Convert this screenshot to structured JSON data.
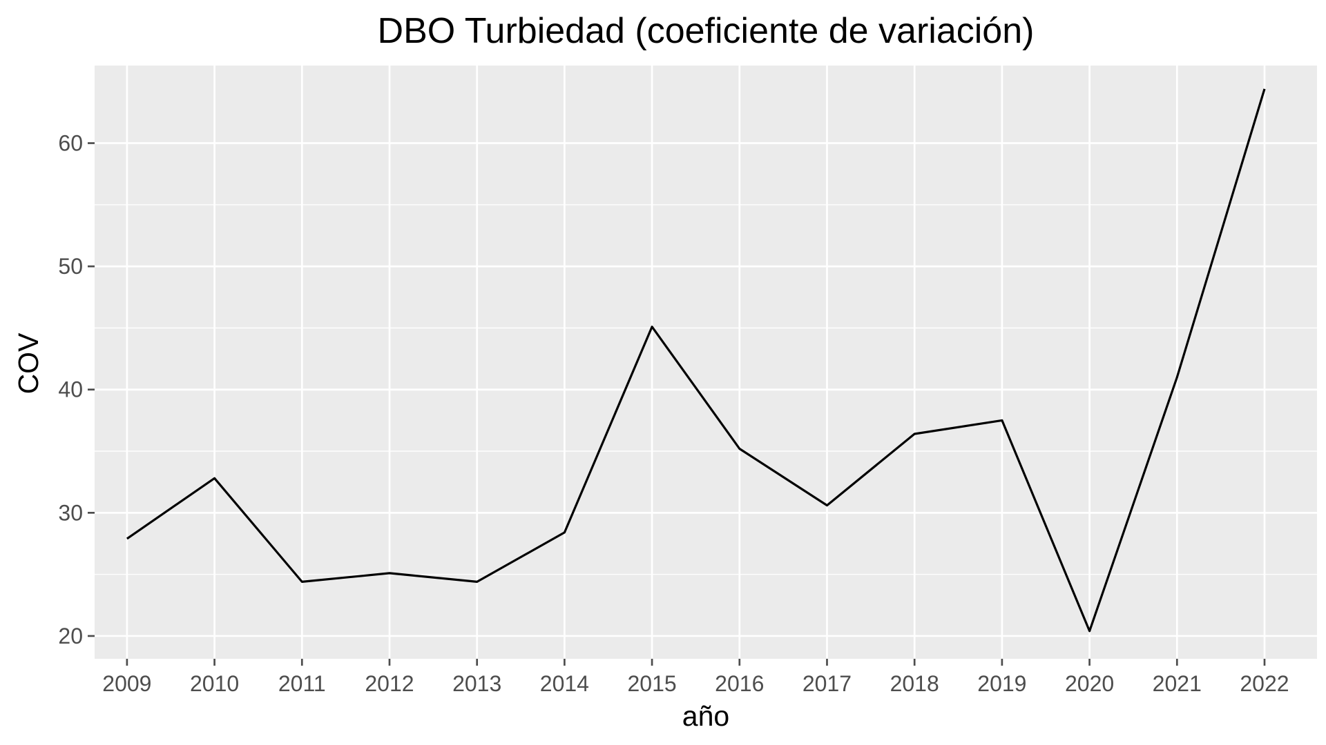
{
  "chart_data": {
    "type": "line",
    "title": "DBO Turbiedad (coeficiente de variación)",
    "xlabel": "año",
    "ylabel": "COV",
    "x": [
      2009,
      2010,
      2011,
      2012,
      2013,
      2014,
      2015,
      2016,
      2017,
      2018,
      2019,
      2020,
      2021,
      2022
    ],
    "series": [
      {
        "values": [
          27.9,
          32.8,
          24.4,
          25.1,
          24.4,
          28.4,
          45.1,
          35.2,
          30.6,
          36.4,
          37.5,
          20.4,
          41.0,
          64.4
        ]
      }
    ],
    "xlim": [
      2008.63,
      2022.6
    ],
    "ylim": [
      18.15,
      66.3
    ],
    "yticks": [
      20,
      30,
      40,
      50,
      60
    ],
    "xtick_labels": [
      "2009",
      "2010",
      "2011",
      "2012",
      "2013",
      "2014",
      "2015",
      "2016",
      "2017",
      "2018",
      "2019",
      "2020",
      "2021",
      "2022"
    ],
    "ytick_labels": [
      "20",
      "30",
      "40",
      "50",
      "60"
    ],
    "grid": true,
    "line_color": "#000000",
    "panel_color": "#ebebeb",
    "grid_color": "#ffffff",
    "tick_color": "#4d4d4d"
  }
}
